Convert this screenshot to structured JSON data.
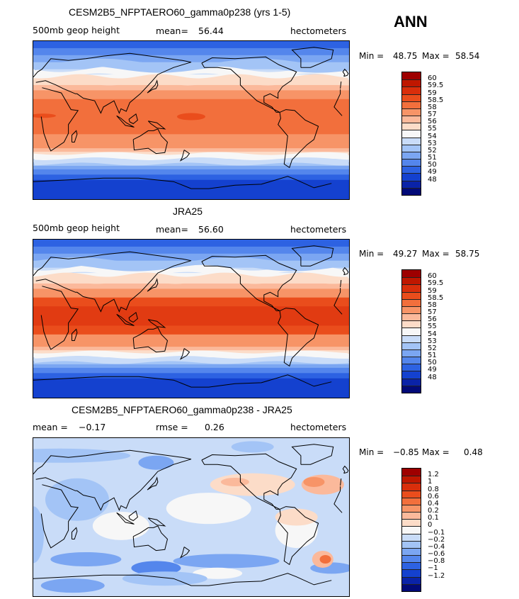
{
  "season": "ANN",
  "panels": [
    {
      "title": "CESM2B5_NFPTAERO60_gamma0p238 (yrs 1-5)",
      "left_label": "500mb geop height",
      "mid_label": "mean=",
      "mid_value": "56.44",
      "right_label": "hectometers",
      "min_label": "Min =",
      "min_value": "48.75",
      "max_label": "Max =",
      "max_value": "58.54",
      "kind": "model"
    },
    {
      "title": "JRA25",
      "left_label": "500mb geop height",
      "mid_label": "mean=",
      "mid_value": "56.60",
      "right_label": "hectometers",
      "min_label": "Min =",
      "min_value": "49.27",
      "max_label": "Max =",
      "max_value": "58.75",
      "kind": "obs"
    },
    {
      "title": "CESM2B5_NFPTAERO60_gamma0p238 - JRA25",
      "left_label": "mean =",
      "left_value": "−0.17",
      "mid_label": "rmse =",
      "mid_value": "0.26",
      "right_label": "hectometers",
      "min_label": "Min =",
      "min_value": "−0.85",
      "max_label": "Max =",
      "max_value": "0.48",
      "kind": "diff"
    }
  ],
  "colorbars": {
    "abs_labels": [
      "60",
      "59.5",
      "59",
      "58.5",
      "58",
      "57",
      "56",
      "55",
      "54",
      "53",
      "52",
      "51",
      "50",
      "49",
      "48"
    ],
    "diff_labels": [
      "1.2",
      "1",
      "0.8",
      "0.6",
      "0.4",
      "0.2",
      "0.1",
      "0",
      "−0.1",
      "−0.2",
      "−0.4",
      "−0.6",
      "−0.8",
      "−1",
      "−1.2"
    ],
    "colors": [
      "#9e0000",
      "#bf1700",
      "#d92e0b",
      "#ea4d1c",
      "#f26f3c",
      "#f79467",
      "#fbb99b",
      "#fcdcc8",
      "#f7f7f7",
      "#c9dcf8",
      "#a3c4f6",
      "#7ba6f2",
      "#5486ec",
      "#2d62e2",
      "#1441cf",
      "#0a23a8",
      "#020a78"
    ]
  },
  "chart_data": [
    {
      "type": "heatmap",
      "title": "CESM2B5_NFPTAERO60_gamma0p238 (yrs 1-5)",
      "variable": "500mb geop height",
      "units": "hectometers",
      "mean": 56.44,
      "min": 48.75,
      "max": 58.54,
      "contour_levels": [
        48,
        49,
        50,
        51,
        52,
        53,
        54,
        55,
        56,
        57,
        58,
        58.5,
        59,
        59.5,
        60
      ]
    },
    {
      "type": "heatmap",
      "title": "JRA25",
      "variable": "500mb geop height",
      "units": "hectometers",
      "mean": 56.6,
      "min": 49.27,
      "max": 58.75,
      "contour_levels": [
        48,
        49,
        50,
        51,
        52,
        53,
        54,
        55,
        56,
        57,
        58,
        58.5,
        59,
        59.5,
        60
      ]
    },
    {
      "type": "heatmap",
      "title": "CESM2B5_NFPTAERO60_gamma0p238 - JRA25",
      "units": "hectometers",
      "mean": -0.17,
      "rmse": 0.26,
      "min": -0.85,
      "max": 0.48,
      "contour_levels": [
        -1.2,
        -1,
        -0.8,
        -0.6,
        -0.4,
        -0.2,
        -0.1,
        0,
        0.1,
        0.2,
        0.4,
        0.6,
        0.8,
        1,
        1.2
      ]
    }
  ]
}
